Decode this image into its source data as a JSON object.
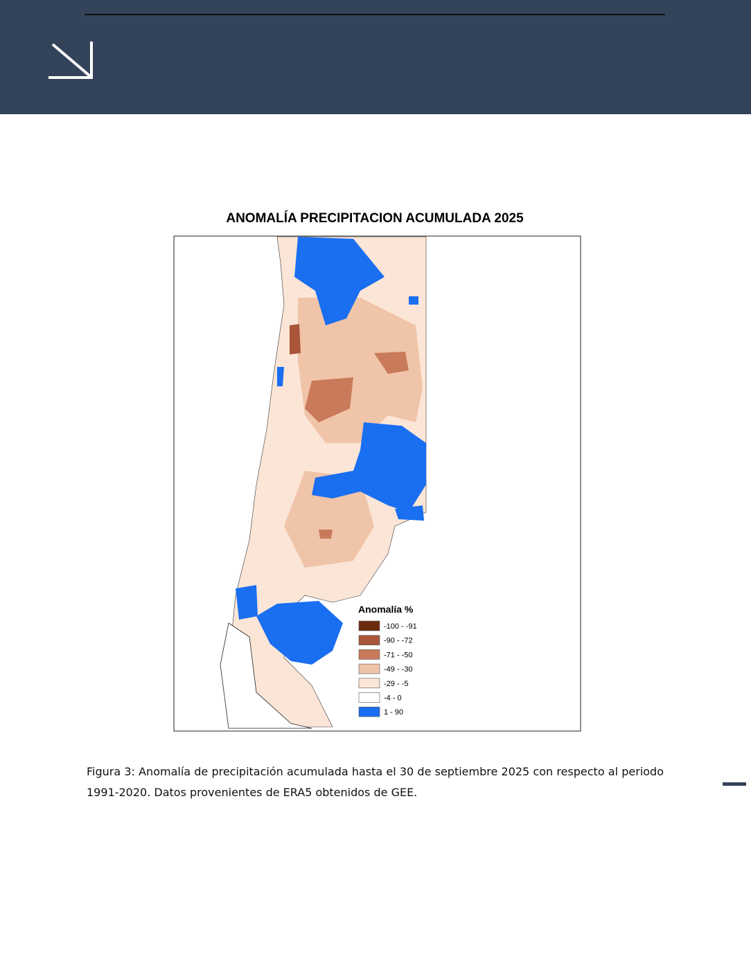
{
  "figure": {
    "title": "ANOMALÍA PRECIPITACION ACUMULADA 2025",
    "legend": {
      "title": "Anomalía %",
      "items": [
        {
          "label": "-100 - -91",
          "color": "#6b2a0e"
        },
        {
          "label": "-90 - -72",
          "color": "#a8553a"
        },
        {
          "label": "-71 - -50",
          "color": "#c97a5a"
        },
        {
          "label": "-49 - -30",
          "color": "#f0c4a8"
        },
        {
          "label": "-29 - -5",
          "color": "#fbe5d6"
        },
        {
          "label": "-4 - 0",
          "color": "#ffffff"
        },
        {
          "label": "1 - 90",
          "color": "#1a6ef0"
        }
      ]
    }
  },
  "caption": "Figura 3: Anomalía de precipitación acumulada hasta el 30 de septiembre 2025 con respecto al periodo 1991-2020. Datos provenientes de ERA5 obtenidos de GEE."
}
